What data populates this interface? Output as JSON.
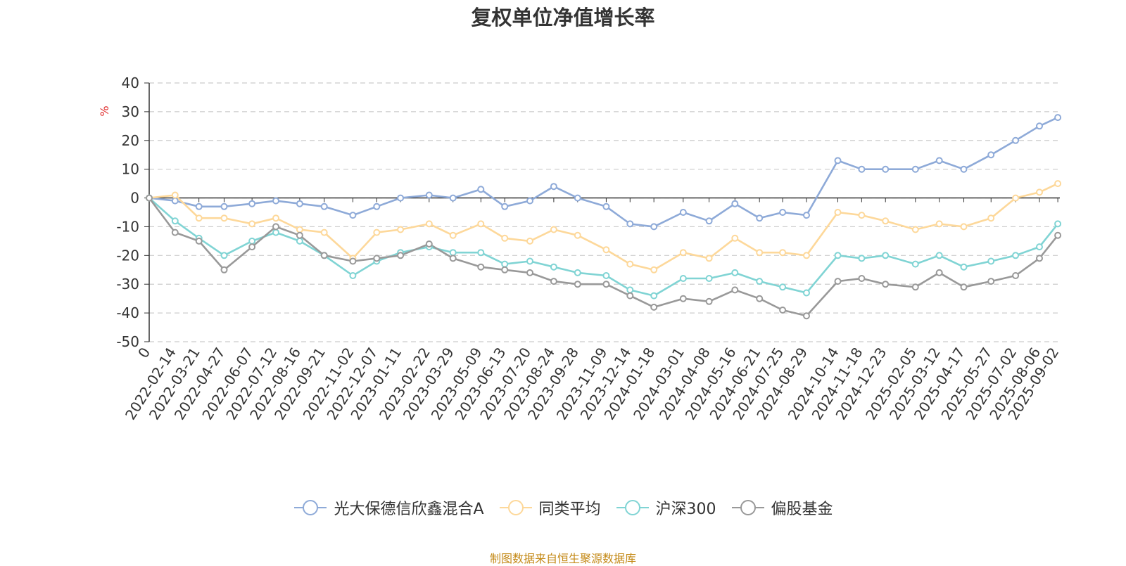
{
  "title": "复权单位净值增长率",
  "source_note": "制图数据来自恒生聚源数据库",
  "chart_data": {
    "type": "line",
    "ylabel": "%",
    "ylim": [
      -50,
      40
    ],
    "yticks": [
      40,
      30,
      20,
      10,
      0,
      -10,
      -20,
      -30,
      -40,
      -50
    ],
    "grid": true,
    "legend_position": "bottom",
    "x_start": "2022-01-07",
    "x_end": "2025-09-05",
    "x_ticks": [
      {
        "label": "0",
        "date": "2022-01-07"
      },
      {
        "label": "2022-02-14",
        "date": "2022-02-14"
      },
      {
        "label": "2022-03-21",
        "date": "2022-03-21"
      },
      {
        "label": "2022-04-27",
        "date": "2022-04-27"
      },
      {
        "label": "2022-06-07",
        "date": "2022-06-07"
      },
      {
        "label": "2022-07-12",
        "date": "2022-07-12"
      },
      {
        "label": "2022-08-16",
        "date": "2022-08-16"
      },
      {
        "label": "2022-09-21",
        "date": "2022-09-21"
      },
      {
        "label": "2022-11-02",
        "date": "2022-11-02"
      },
      {
        "label": "2022-12-07",
        "date": "2022-12-07"
      },
      {
        "label": "2023-01-11",
        "date": "2023-01-11"
      },
      {
        "label": "2023-02-22",
        "date": "2023-02-22"
      },
      {
        "label": "2023-03-29",
        "date": "2023-03-29"
      },
      {
        "label": "2023-05-09",
        "date": "2023-05-09"
      },
      {
        "label": "2023-06-13",
        "date": "2023-06-13"
      },
      {
        "label": "2023-07-20",
        "date": "2023-07-20"
      },
      {
        "label": "2023-08-24",
        "date": "2023-08-24"
      },
      {
        "label": "2023-09-28",
        "date": "2023-09-28"
      },
      {
        "label": "2023-11-09",
        "date": "2023-11-09"
      },
      {
        "label": "2023-12-14",
        "date": "2023-12-14"
      },
      {
        "label": "2024-01-18",
        "date": "2024-01-18"
      },
      {
        "label": "2024-03-01",
        "date": "2024-03-01"
      },
      {
        "label": "2024-04-08",
        "date": "2024-04-08"
      },
      {
        "label": "2024-05-16",
        "date": "2024-05-16"
      },
      {
        "label": "2024-06-21",
        "date": "2024-06-21"
      },
      {
        "label": "2024-07-25",
        "date": "2024-07-25"
      },
      {
        "label": "2024-08-29",
        "date": "2024-08-29"
      },
      {
        "label": "2024-10-14",
        "date": "2024-10-14"
      },
      {
        "label": "2024-11-18",
        "date": "2024-11-18"
      },
      {
        "label": "2024-12-23",
        "date": "2024-12-23"
      },
      {
        "label": "2025-02-05",
        "date": "2025-02-05"
      },
      {
        "label": "2025-03-12",
        "date": "2025-03-12"
      },
      {
        "label": "2025-04-17",
        "date": "2025-04-17"
      },
      {
        "label": "2025-05-27",
        "date": "2025-05-27"
      },
      {
        "label": "2025-07-02",
        "date": "2025-07-02"
      },
      {
        "label": "2025-08-06",
        "date": "2025-08-06"
      },
      {
        "label": "2025-09-02",
        "date": "2025-09-02"
      }
    ],
    "series": [
      {
        "name": "光大保德信欣鑫混合A",
        "color": "#8eaad8",
        "points": [
          [
            "2022-01-07",
            0
          ],
          [
            "2022-02-14",
            -1
          ],
          [
            "2022-03-21",
            -3
          ],
          [
            "2022-04-27",
            -3
          ],
          [
            "2022-06-07",
            -2
          ],
          [
            "2022-07-12",
            -1
          ],
          [
            "2022-08-16",
            -2
          ],
          [
            "2022-09-21",
            -3
          ],
          [
            "2022-11-02",
            -6
          ],
          [
            "2022-12-07",
            -3
          ],
          [
            "2023-01-11",
            0
          ],
          [
            "2023-02-22",
            1
          ],
          [
            "2023-03-29",
            0
          ],
          [
            "2023-05-09",
            3
          ],
          [
            "2023-06-13",
            -3
          ],
          [
            "2023-07-20",
            -1
          ],
          [
            "2023-08-24",
            4
          ],
          [
            "2023-09-28",
            0
          ],
          [
            "2023-11-09",
            -3
          ],
          [
            "2023-12-14",
            -9
          ],
          [
            "2024-01-18",
            -10
          ],
          [
            "2024-03-01",
            -5
          ],
          [
            "2024-04-08",
            -8
          ],
          [
            "2024-05-16",
            -2
          ],
          [
            "2024-06-21",
            -7
          ],
          [
            "2024-07-25",
            -5
          ],
          [
            "2024-08-29",
            -6
          ],
          [
            "2024-10-14",
            13
          ],
          [
            "2024-11-18",
            10
          ],
          [
            "2024-12-23",
            10
          ],
          [
            "2025-02-05",
            10
          ],
          [
            "2025-03-12",
            13
          ],
          [
            "2025-04-17",
            10
          ],
          [
            "2025-05-27",
            15
          ],
          [
            "2025-07-02",
            20
          ],
          [
            "2025-08-06",
            25
          ],
          [
            "2025-09-02",
            28
          ]
        ]
      },
      {
        "name": "同类平均",
        "color": "#fdd89a",
        "points": [
          [
            "2022-01-07",
            0
          ],
          [
            "2022-02-14",
            1
          ],
          [
            "2022-03-21",
            -7
          ],
          [
            "2022-04-27",
            -7
          ],
          [
            "2022-06-07",
            -9
          ],
          [
            "2022-07-12",
            -7
          ],
          [
            "2022-08-16",
            -11
          ],
          [
            "2022-09-21",
            -12
          ],
          [
            "2022-11-02",
            -21
          ],
          [
            "2022-12-07",
            -12
          ],
          [
            "2023-01-11",
            -11
          ],
          [
            "2023-02-22",
            -9
          ],
          [
            "2023-03-29",
            -13
          ],
          [
            "2023-05-09",
            -9
          ],
          [
            "2023-06-13",
            -14
          ],
          [
            "2023-07-20",
            -15
          ],
          [
            "2023-08-24",
            -11
          ],
          [
            "2023-09-28",
            -13
          ],
          [
            "2023-11-09",
            -18
          ],
          [
            "2023-12-14",
            -23
          ],
          [
            "2024-01-18",
            -25
          ],
          [
            "2024-03-01",
            -19
          ],
          [
            "2024-04-08",
            -21
          ],
          [
            "2024-05-16",
            -14
          ],
          [
            "2024-06-21",
            -19
          ],
          [
            "2024-07-25",
            -19
          ],
          [
            "2024-08-29",
            -20
          ],
          [
            "2024-10-14",
            -5
          ],
          [
            "2024-11-18",
            -6
          ],
          [
            "2024-12-23",
            -8
          ],
          [
            "2025-02-05",
            -11
          ],
          [
            "2025-03-12",
            -9
          ],
          [
            "2025-04-17",
            -10
          ],
          [
            "2025-05-27",
            -7
          ],
          [
            "2025-07-02",
            0
          ],
          [
            "2025-08-06",
            2
          ],
          [
            "2025-09-02",
            5
          ]
        ]
      },
      {
        "name": "沪深300",
        "color": "#80d4d4",
        "points": [
          [
            "2022-01-07",
            0
          ],
          [
            "2022-02-14",
            -8
          ],
          [
            "2022-03-21",
            -14
          ],
          [
            "2022-04-27",
            -20
          ],
          [
            "2022-06-07",
            -15
          ],
          [
            "2022-07-12",
            -12
          ],
          [
            "2022-08-16",
            -15
          ],
          [
            "2022-09-21",
            -20
          ],
          [
            "2022-11-02",
            -27
          ],
          [
            "2022-12-07",
            -22
          ],
          [
            "2023-01-11",
            -19
          ],
          [
            "2023-02-22",
            -17
          ],
          [
            "2023-03-29",
            -19
          ],
          [
            "2023-05-09",
            -19
          ],
          [
            "2023-06-13",
            -23
          ],
          [
            "2023-07-20",
            -22
          ],
          [
            "2023-08-24",
            -24
          ],
          [
            "2023-09-28",
            -26
          ],
          [
            "2023-11-09",
            -27
          ],
          [
            "2023-12-14",
            -32
          ],
          [
            "2024-01-18",
            -34
          ],
          [
            "2024-03-01",
            -28
          ],
          [
            "2024-04-08",
            -28
          ],
          [
            "2024-05-16",
            -26
          ],
          [
            "2024-06-21",
            -29
          ],
          [
            "2024-07-25",
            -31
          ],
          [
            "2024-08-29",
            -33
          ],
          [
            "2024-10-14",
            -20
          ],
          [
            "2024-11-18",
            -21
          ],
          [
            "2024-12-23",
            -20
          ],
          [
            "2025-02-05",
            -23
          ],
          [
            "2025-03-12",
            -20
          ],
          [
            "2025-04-17",
            -24
          ],
          [
            "2025-05-27",
            -22
          ],
          [
            "2025-07-02",
            -20
          ],
          [
            "2025-08-06",
            -17
          ],
          [
            "2025-09-02",
            -9
          ]
        ]
      },
      {
        "name": "偏股基金",
        "color": "#999999",
        "points": [
          [
            "2022-01-07",
            0
          ],
          [
            "2022-02-14",
            -12
          ],
          [
            "2022-03-21",
            -15
          ],
          [
            "2022-04-27",
            -25
          ],
          [
            "2022-06-07",
            -17
          ],
          [
            "2022-07-12",
            -10
          ],
          [
            "2022-08-16",
            -13
          ],
          [
            "2022-09-21",
            -20
          ],
          [
            "2022-11-02",
            -22
          ],
          [
            "2022-12-07",
            -21
          ],
          [
            "2023-01-11",
            -20
          ],
          [
            "2023-02-22",
            -16
          ],
          [
            "2023-03-29",
            -21
          ],
          [
            "2023-05-09",
            -24
          ],
          [
            "2023-06-13",
            -25
          ],
          [
            "2023-07-20",
            -26
          ],
          [
            "2023-08-24",
            -29
          ],
          [
            "2023-09-28",
            -30
          ],
          [
            "2023-11-09",
            -30
          ],
          [
            "2023-12-14",
            -34
          ],
          [
            "2024-01-18",
            -38
          ],
          [
            "2024-03-01",
            -35
          ],
          [
            "2024-04-08",
            -36
          ],
          [
            "2024-05-16",
            -32
          ],
          [
            "2024-06-21",
            -35
          ],
          [
            "2024-07-25",
            -39
          ],
          [
            "2024-08-29",
            -41
          ],
          [
            "2024-10-14",
            -29
          ],
          [
            "2024-11-18",
            -28
          ],
          [
            "2024-12-23",
            -30
          ],
          [
            "2025-02-05",
            -31
          ],
          [
            "2025-03-12",
            -26
          ],
          [
            "2025-04-17",
            -31
          ],
          [
            "2025-05-27",
            -29
          ],
          [
            "2025-07-02",
            -27
          ],
          [
            "2025-08-06",
            -21
          ],
          [
            "2025-09-02",
            -13
          ]
        ]
      }
    ]
  }
}
